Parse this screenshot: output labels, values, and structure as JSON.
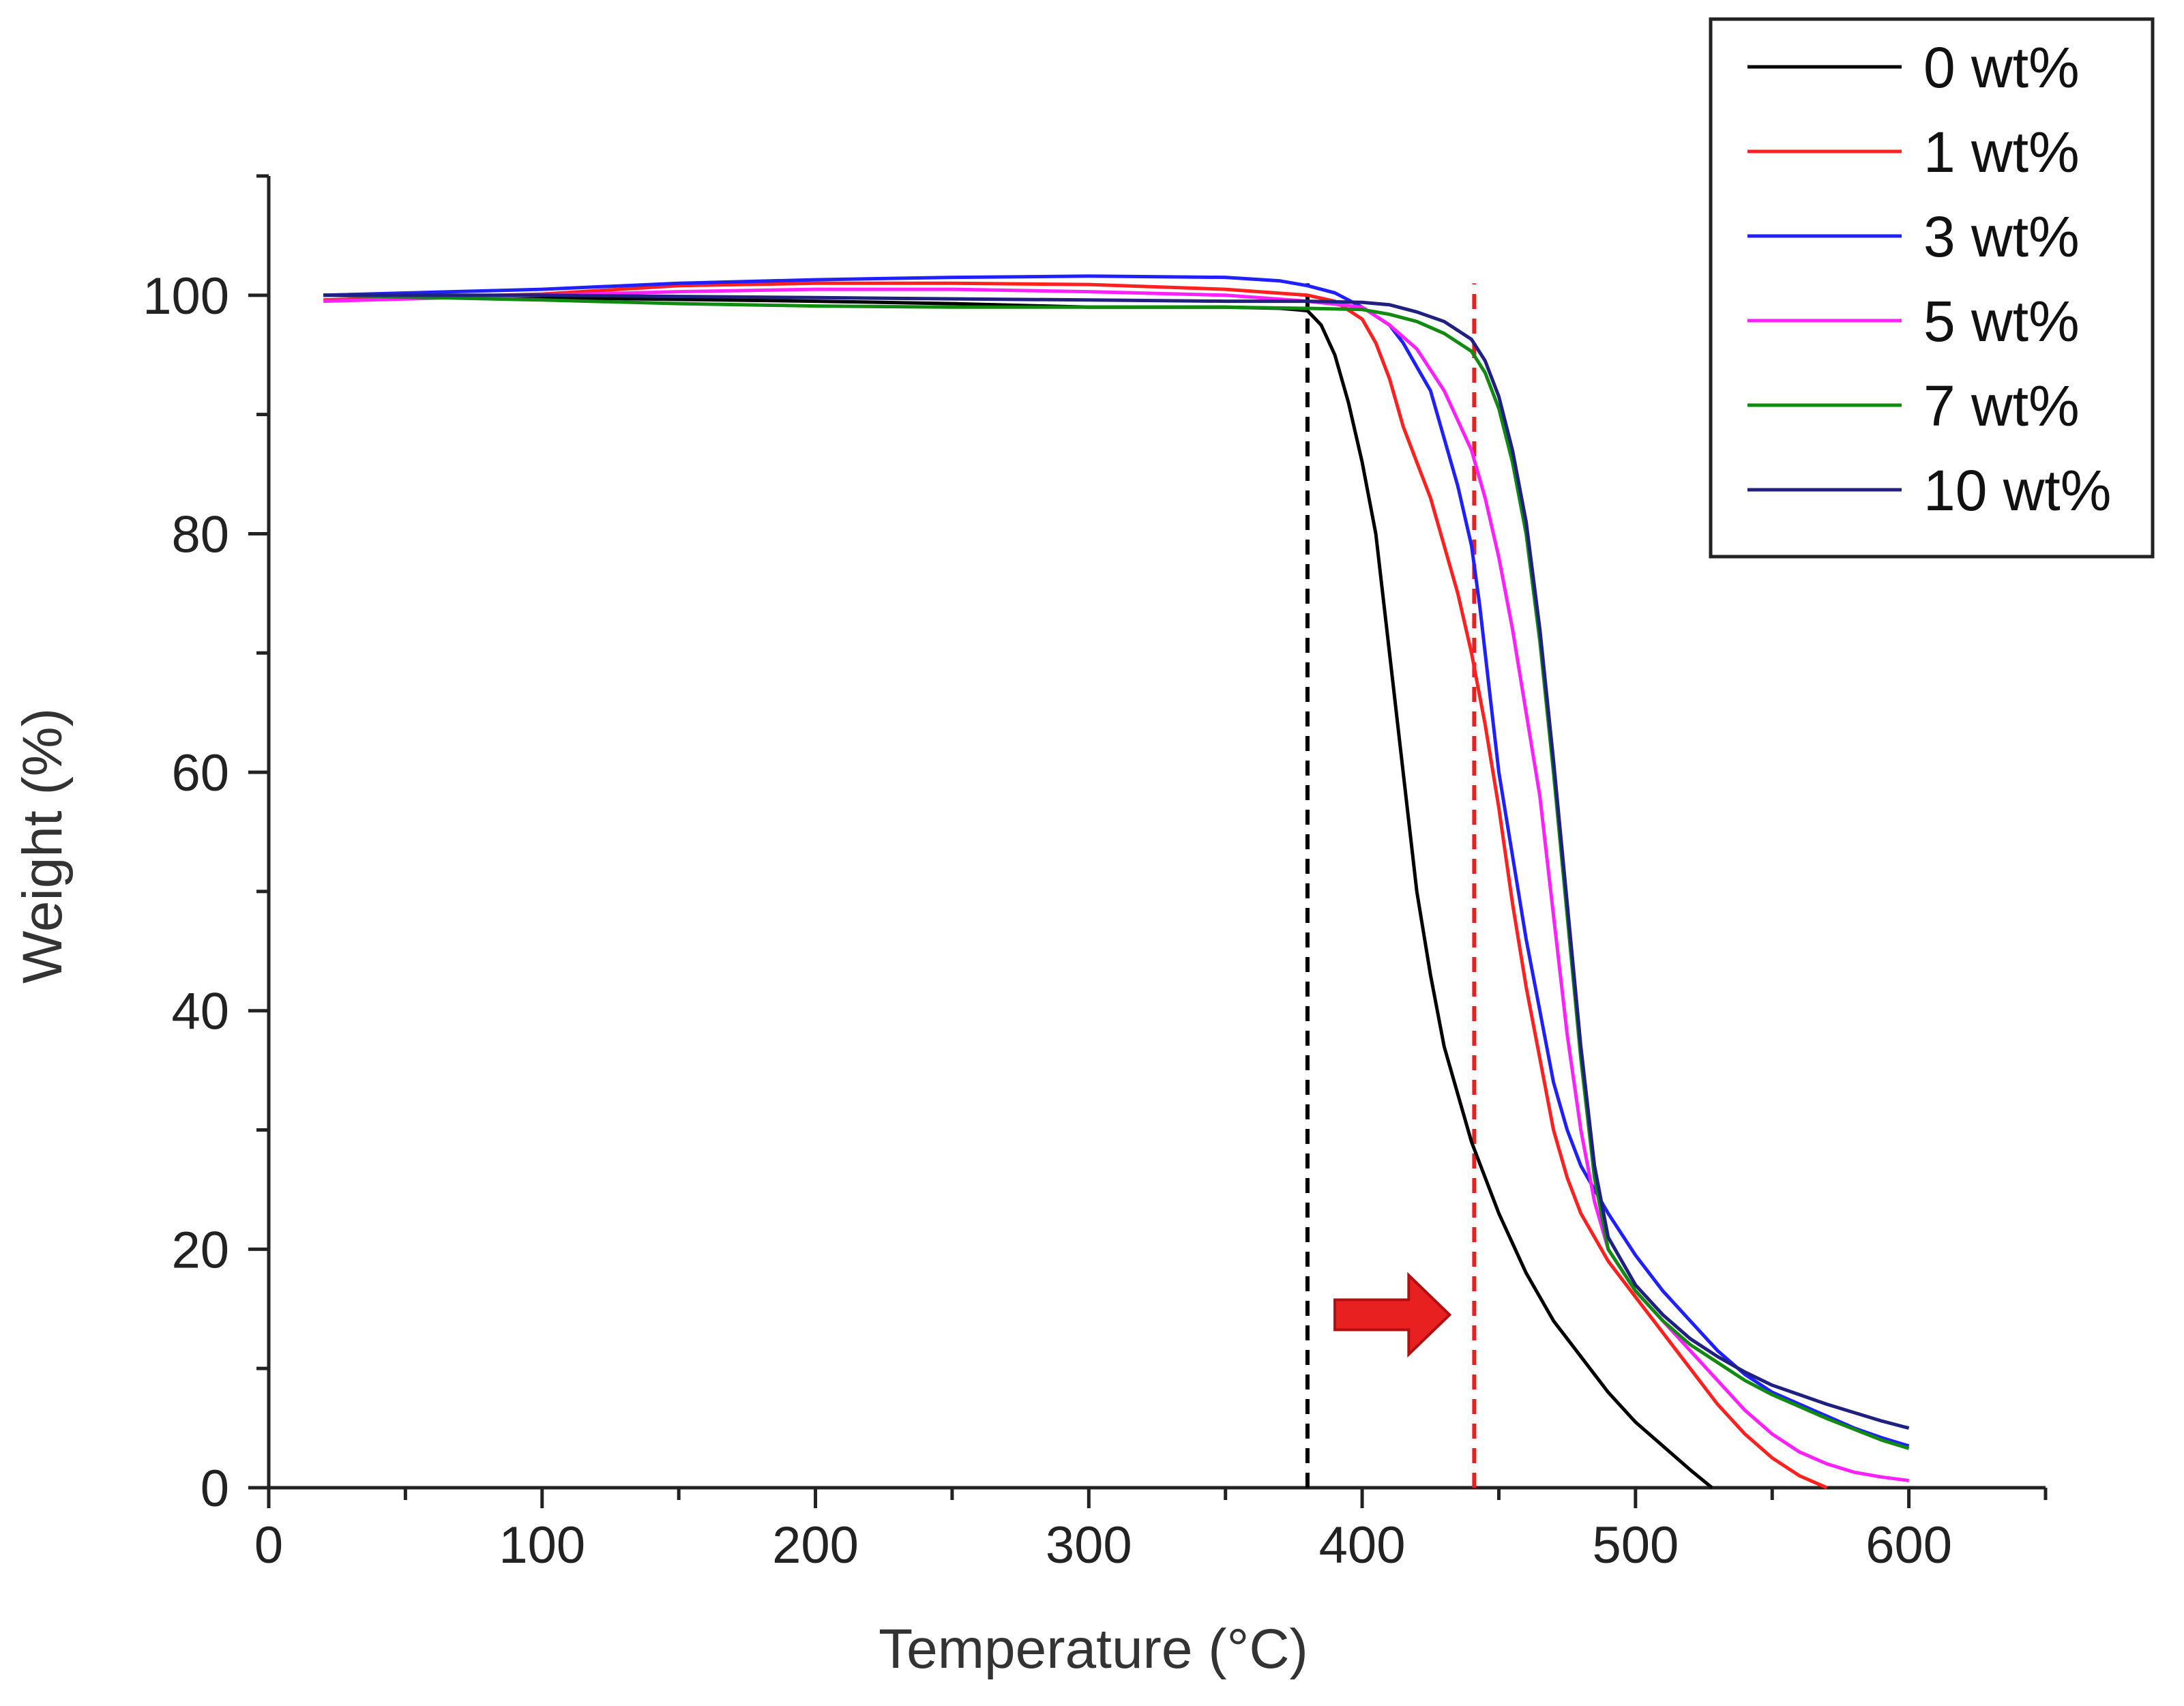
{
  "chart_data": {
    "type": "line",
    "title": "",
    "xlabel": "Temperature (°C)",
    "ylabel": "Weight (%)",
    "xlim": [
      0,
      650
    ],
    "ylim": [
      0,
      110
    ],
    "x_ticks": [
      0,
      100,
      200,
      300,
      400,
      500,
      600
    ],
    "x_tick_labels": [
      "0",
      "100",
      "200",
      "300",
      "400",
      "500",
      "600"
    ],
    "y_ticks": [
      0,
      20,
      40,
      60,
      80,
      100
    ],
    "y_tick_labels": [
      "0",
      "20",
      "40",
      "60",
      "80",
      "100"
    ],
    "legend_position": "top-right",
    "series": [
      {
        "name": "0 wt%",
        "color": "#000000",
        "points": [
          [
            20,
            100
          ],
          [
            100,
            99.8
          ],
          [
            200,
            99.5
          ],
          [
            250,
            99.3
          ],
          [
            300,
            99.0
          ],
          [
            350,
            99.0
          ],
          [
            370,
            98.9
          ],
          [
            380,
            98.7
          ],
          [
            385,
            97.5
          ],
          [
            390,
            95
          ],
          [
            395,
            91
          ],
          [
            400,
            86
          ],
          [
            405,
            80
          ],
          [
            410,
            70
          ],
          [
            415,
            60
          ],
          [
            420,
            50
          ],
          [
            425,
            43
          ],
          [
            430,
            37
          ],
          [
            435,
            33
          ],
          [
            440,
            29
          ],
          [
            450,
            23
          ],
          [
            460,
            18
          ],
          [
            470,
            14
          ],
          [
            480,
            11
          ],
          [
            490,
            8
          ],
          [
            500,
            5.5
          ],
          [
            510,
            3.5
          ],
          [
            520,
            1.5
          ],
          [
            528,
            0
          ]
        ]
      },
      {
        "name": "1 wt%",
        "color": "#ff2020",
        "points": [
          [
            20,
            99.6
          ],
          [
            100,
            100.1
          ],
          [
            150,
            100.8
          ],
          [
            200,
            101.0
          ],
          [
            250,
            101.0
          ],
          [
            300,
            100.9
          ],
          [
            350,
            100.5
          ],
          [
            380,
            100.0
          ],
          [
            390,
            99.5
          ],
          [
            400,
            98
          ],
          [
            405,
            96
          ],
          [
            410,
            93
          ],
          [
            415,
            89
          ],
          [
            420,
            86
          ],
          [
            425,
            83
          ],
          [
            430,
            79
          ],
          [
            435,
            75
          ],
          [
            440,
            70
          ],
          [
            445,
            64
          ],
          [
            450,
            57
          ],
          [
            455,
            49
          ],
          [
            460,
            42
          ],
          [
            465,
            36
          ],
          [
            470,
            30
          ],
          [
            475,
            26
          ],
          [
            480,
            23
          ],
          [
            490,
            19
          ],
          [
            500,
            16
          ],
          [
            510,
            13
          ],
          [
            520,
            10
          ],
          [
            530,
            7
          ],
          [
            540,
            4.5
          ],
          [
            550,
            2.5
          ],
          [
            560,
            1
          ],
          [
            570,
            0
          ]
        ]
      },
      {
        "name": "3 wt%",
        "color": "#2020ff",
        "points": [
          [
            20,
            100
          ],
          [
            100,
            100.5
          ],
          [
            150,
            101.0
          ],
          [
            200,
            101.3
          ],
          [
            250,
            101.5
          ],
          [
            300,
            101.6
          ],
          [
            350,
            101.5
          ],
          [
            370,
            101.2
          ],
          [
            380,
            100.8
          ],
          [
            390,
            100.2
          ],
          [
            400,
            99
          ],
          [
            410,
            97.5
          ],
          [
            415,
            96
          ],
          [
            420,
            94
          ],
          [
            425,
            92
          ],
          [
            430,
            88
          ],
          [
            435,
            84
          ],
          [
            440,
            79
          ],
          [
            443,
            74
          ],
          [
            446,
            68
          ],
          [
            450,
            60
          ],
          [
            455,
            53
          ],
          [
            460,
            46
          ],
          [
            465,
            40
          ],
          [
            470,
            34
          ],
          [
            475,
            30
          ],
          [
            480,
            27
          ],
          [
            485,
            25
          ],
          [
            490,
            23
          ],
          [
            500,
            19.5
          ],
          [
            510,
            16.5
          ],
          [
            520,
            14
          ],
          [
            530,
            11.5
          ],
          [
            540,
            9.5
          ],
          [
            550,
            8
          ],
          [
            560,
            7
          ],
          [
            570,
            6
          ],
          [
            580,
            5
          ],
          [
            590,
            4.2
          ],
          [
            600,
            3.5
          ]
        ]
      },
      {
        "name": "5 wt%",
        "color": "#ff20ff",
        "points": [
          [
            20,
            99.5
          ],
          [
            100,
            100
          ],
          [
            150,
            100.3
          ],
          [
            200,
            100.5
          ],
          [
            250,
            100.5
          ],
          [
            300,
            100.3
          ],
          [
            350,
            100
          ],
          [
            380,
            99.5
          ],
          [
            400,
            99
          ],
          [
            410,
            97.5
          ],
          [
            420,
            95.5
          ],
          [
            430,
            92
          ],
          [
            440,
            87
          ],
          [
            445,
            83
          ],
          [
            450,
            78
          ],
          [
            455,
            72
          ],
          [
            460,
            65
          ],
          [
            465,
            58
          ],
          [
            470,
            48
          ],
          [
            475,
            38
          ],
          [
            480,
            30
          ],
          [
            485,
            24
          ],
          [
            490,
            20
          ],
          [
            500,
            16.5
          ],
          [
            510,
            14
          ],
          [
            520,
            11.5
          ],
          [
            530,
            9
          ],
          [
            540,
            6.5
          ],
          [
            550,
            4.5
          ],
          [
            560,
            3
          ],
          [
            570,
            2
          ],
          [
            580,
            1.3
          ],
          [
            590,
            0.9
          ],
          [
            600,
            0.6
          ]
        ]
      },
      {
        "name": "7 wt%",
        "color": "#108a10",
        "points": [
          [
            20,
            100
          ],
          [
            100,
            99.6
          ],
          [
            150,
            99.3
          ],
          [
            200,
            99.1
          ],
          [
            250,
            99.0
          ],
          [
            300,
            99.0
          ],
          [
            350,
            99.0
          ],
          [
            380,
            98.9
          ],
          [
            400,
            98.8
          ],
          [
            410,
            98.4
          ],
          [
            420,
            97.8
          ],
          [
            430,
            96.8
          ],
          [
            440,
            95.3
          ],
          [
            445,
            93.5
          ],
          [
            450,
            90.5
          ],
          [
            455,
            86
          ],
          [
            460,
            80
          ],
          [
            465,
            71
          ],
          [
            470,
            60
          ],
          [
            475,
            48
          ],
          [
            480,
            36
          ],
          [
            485,
            26
          ],
          [
            490,
            20
          ],
          [
            500,
            16.5
          ],
          [
            510,
            14
          ],
          [
            520,
            12
          ],
          [
            530,
            10.5
          ],
          [
            540,
            9
          ],
          [
            550,
            7.8
          ],
          [
            560,
            6.8
          ],
          [
            570,
            5.8
          ],
          [
            580,
            4.9
          ],
          [
            590,
            4
          ],
          [
            600,
            3.3
          ]
        ]
      },
      {
        "name": "10 wt%",
        "color": "#202080",
        "points": [
          [
            20,
            100
          ],
          [
            100,
            100
          ],
          [
            150,
            99.9
          ],
          [
            200,
            99.8
          ],
          [
            250,
            99.7
          ],
          [
            300,
            99.6
          ],
          [
            350,
            99.5
          ],
          [
            380,
            99.5
          ],
          [
            400,
            99.4
          ],
          [
            410,
            99.2
          ],
          [
            420,
            98.6
          ],
          [
            430,
            97.8
          ],
          [
            440,
            96.3
          ],
          [
            445,
            94.5
          ],
          [
            450,
            91.5
          ],
          [
            455,
            87
          ],
          [
            460,
            81
          ],
          [
            465,
            72
          ],
          [
            470,
            61
          ],
          [
            475,
            49
          ],
          [
            480,
            37
          ],
          [
            485,
            27
          ],
          [
            490,
            21
          ],
          [
            500,
            17
          ],
          [
            510,
            14.5
          ],
          [
            520,
            12.5
          ],
          [
            530,
            11
          ],
          [
            540,
            9.7
          ],
          [
            550,
            8.6
          ],
          [
            560,
            7.8
          ],
          [
            570,
            7
          ],
          [
            580,
            6.3
          ],
          [
            590,
            5.6
          ],
          [
            600,
            5
          ]
        ]
      }
    ],
    "annotations": {
      "vertical_lines": [
        {
          "x": 380,
          "color": "#000000",
          "style": "dashed"
        },
        {
          "x": 441,
          "color": "#e82020",
          "style": "dashed"
        }
      ],
      "arrow": {
        "from_x": 390,
        "to_x": 432,
        "y": 14.5,
        "color": "#e82020",
        "direction": "right"
      }
    }
  }
}
